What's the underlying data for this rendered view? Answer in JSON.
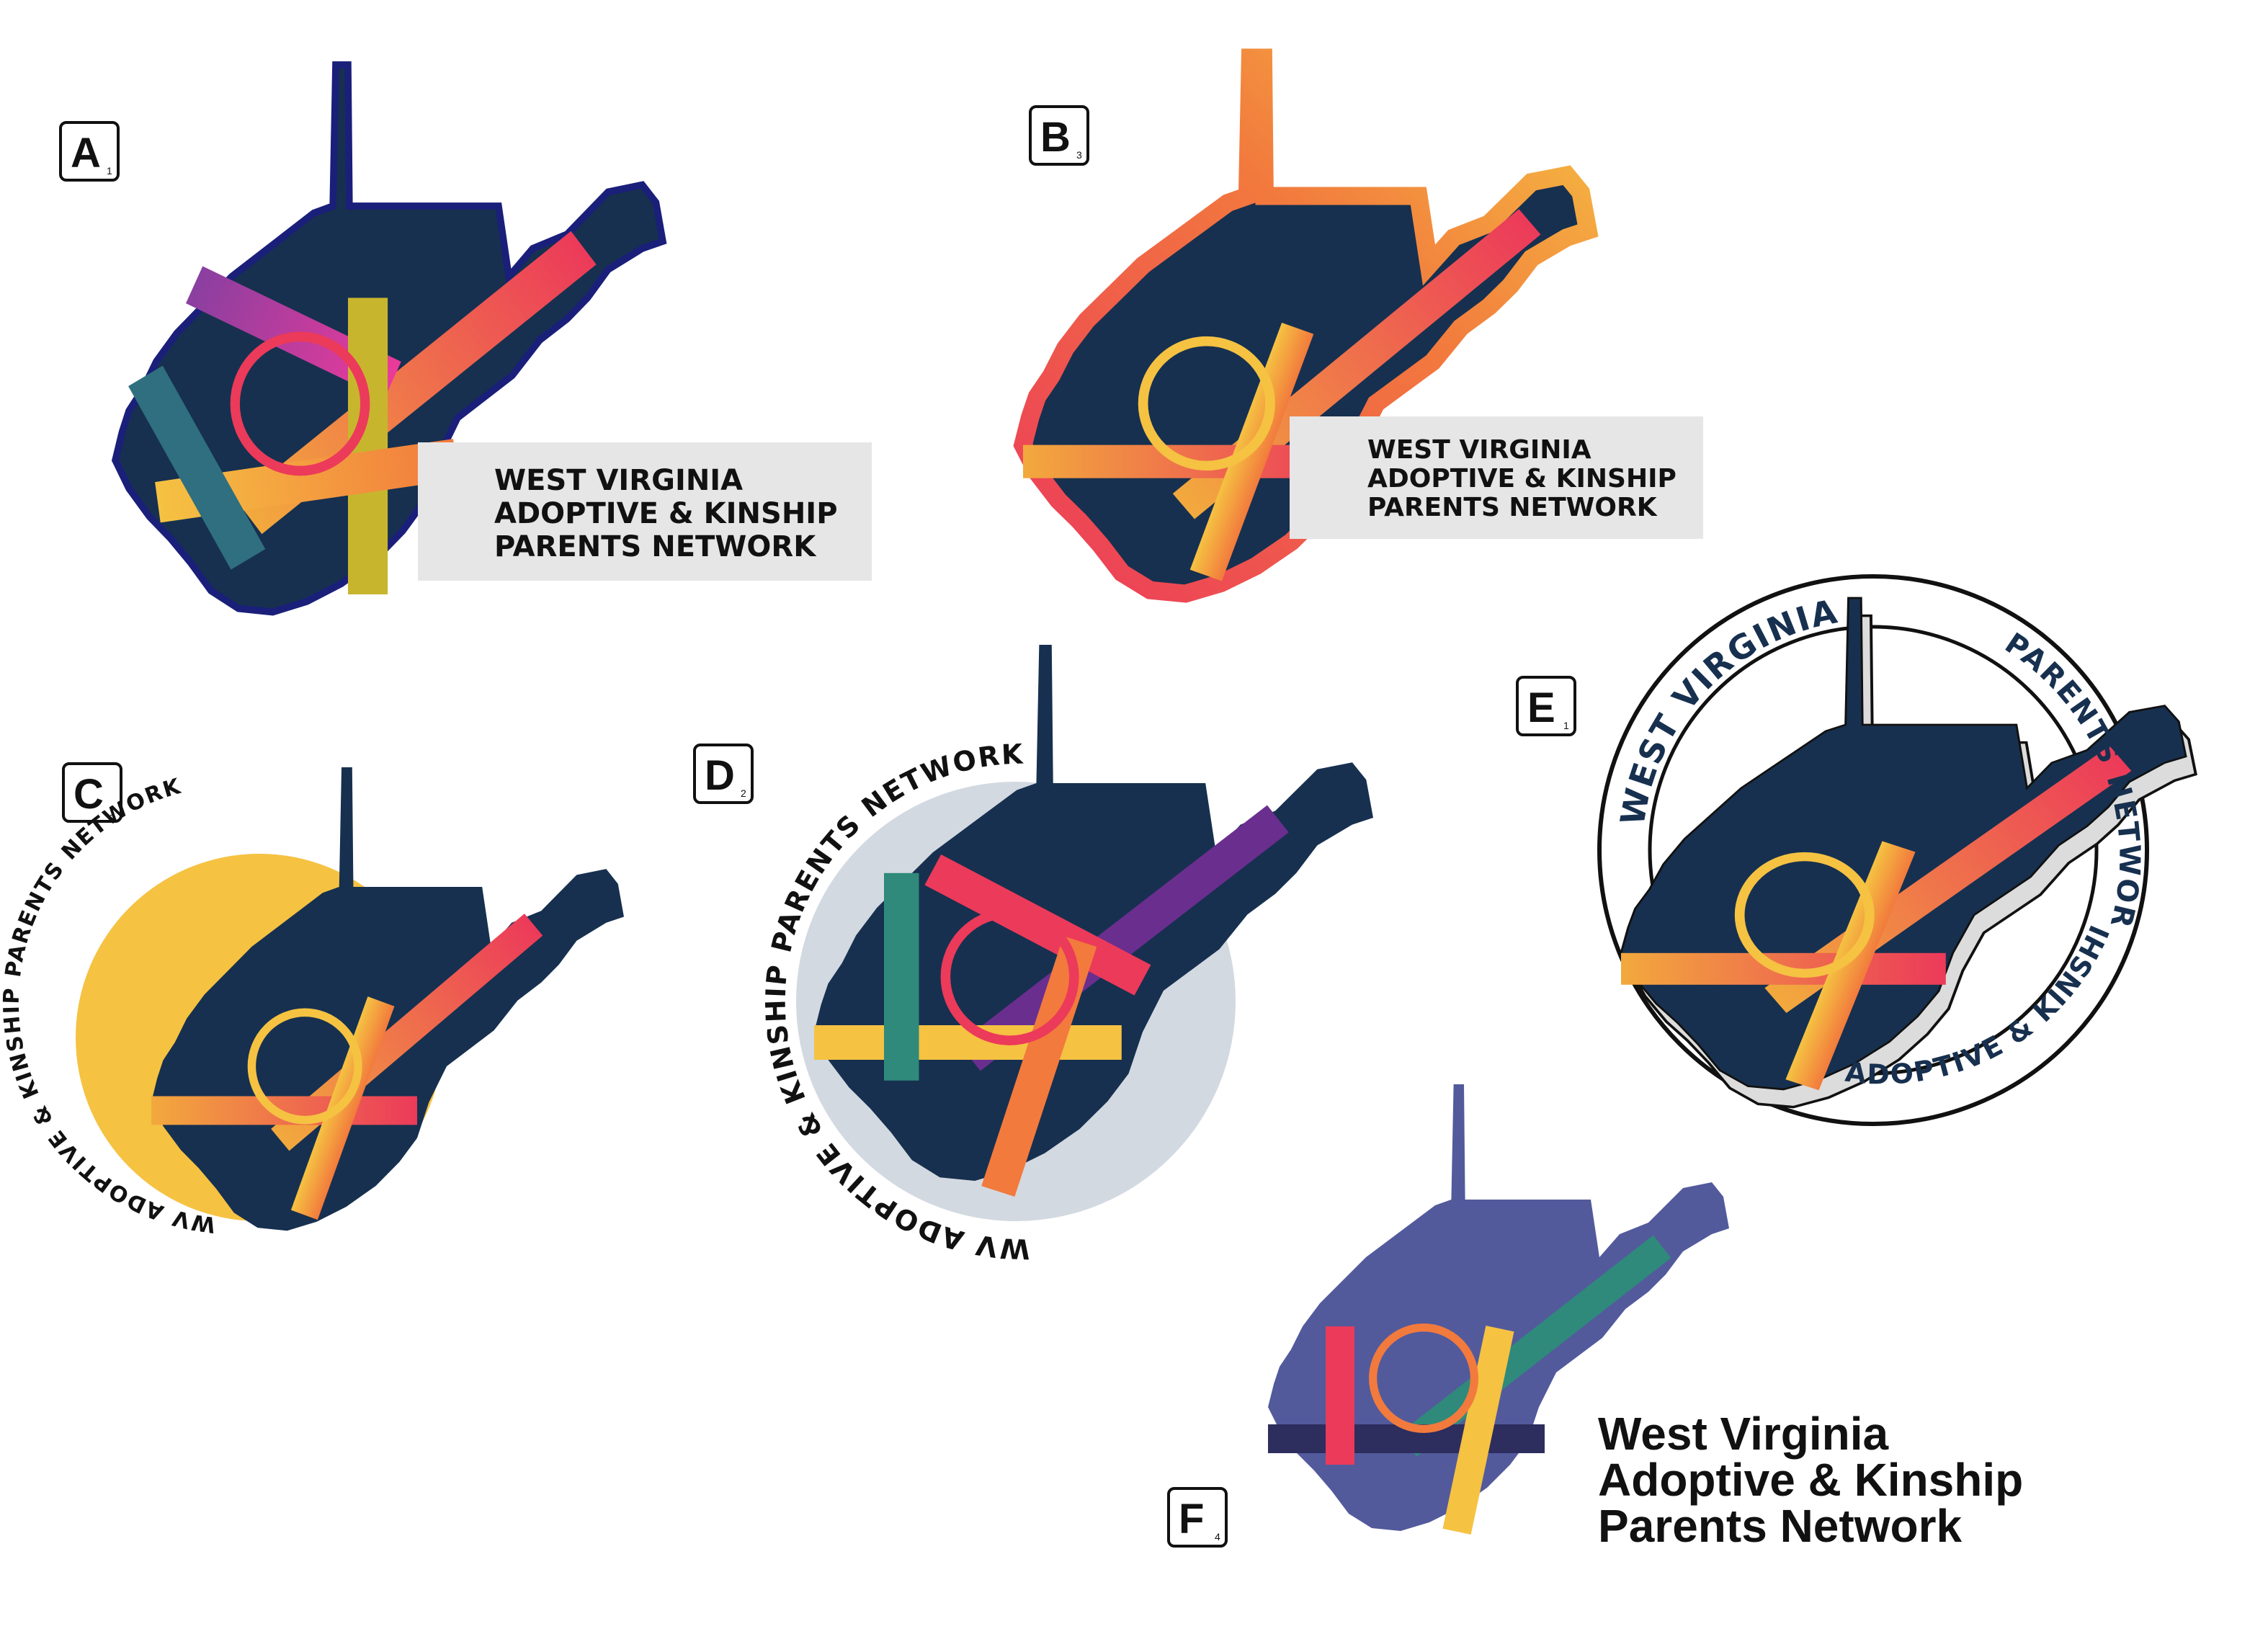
{
  "logos": [
    {
      "id": "A",
      "tile": {
        "letter": "A",
        "number": "1"
      },
      "text": [
        "WEST VIRGINIA",
        "ADOPTIVE & KINSHIP",
        "PARENTS NETWORK"
      ]
    },
    {
      "id": "B",
      "tile": {
        "letter": "B",
        "number": "3"
      },
      "text": [
        "WEST VIRGINIA",
        "ADOPTIVE & KINSHIP",
        "PARENTS NETWORK"
      ]
    },
    {
      "id": "C",
      "tile": {
        "letter": "C",
        "number": "1"
      },
      "circle_text": "WV ADOPTIVE & KINSHIP PARENTS NETWORK"
    },
    {
      "id": "D",
      "tile": {
        "letter": "D",
        "number": "2"
      },
      "circle_text": "WV ADOPTIVE & KINSHIP PARENTS NETWORK"
    },
    {
      "id": "E",
      "tile": {
        "letter": "E",
        "number": "1"
      },
      "top_text": "WEST VIRGINIA",
      "right_text": "PARENTS NETWORK",
      "bottom_text": "ADOPTIVE & KINSHIP"
    },
    {
      "id": "F",
      "tile": {
        "letter": "F",
        "number": "4"
      },
      "text": [
        "West Virginia",
        "Adoptive & Kinship",
        "Parents Network"
      ]
    }
  ],
  "colors": {
    "navy": "#17304f",
    "purple_slate": "#525a9c",
    "yellow": "#f5c242",
    "pink": "#ec3a5a",
    "orange": "#f27a3d",
    "teal": "#2f8a7b",
    "violet": "#6a2e8f",
    "light_gray": "#e6e6e6",
    "circle_gray": "#d3d9e1"
  }
}
